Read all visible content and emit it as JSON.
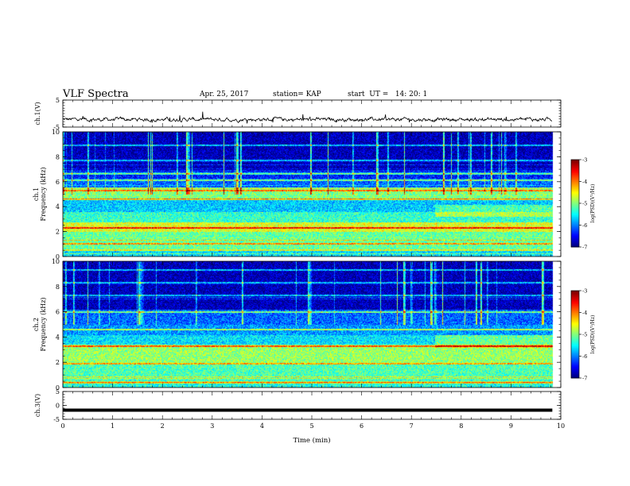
{
  "header": {
    "title": "VLF Spectra",
    "date": "Apr. 25, 2017",
    "station": "station= KAP",
    "start": "start  UT =   14: 20: 1"
  },
  "chart_data": [
    {
      "type": "line",
      "panel": "ch1-waveform",
      "ylabel": "ch.1(V)",
      "yticks": [
        "5",
        "-5"
      ],
      "ylim": [
        -5,
        5
      ],
      "xlim": [
        0,
        10
      ],
      "x_end": 9.83,
      "description_values": {
        "baseline_v": -2.2,
        "variability_v": 1.3
      },
      "color": "#000000"
    },
    {
      "type": "heatmap",
      "panel": "ch1-spectrogram",
      "ylabel_line1": "ch.1",
      "ylabel_line2": "Frequency (kHz)",
      "yticks": [
        "0",
        "2",
        "4",
        "6",
        "8",
        "10"
      ],
      "ylim": [
        0,
        10
      ],
      "xlim": [
        0,
        10
      ],
      "x_end": 9.83,
      "colorbar": {
        "label": "log(PSD)(V²/Hz)",
        "ticks": [
          "-3",
          "-4",
          "-5",
          "-6",
          "-7"
        ],
        "range": [
          -7,
          -3
        ]
      },
      "bands": [
        {
          "f0": 0.0,
          "f1": 0.6,
          "level": -5.6
        },
        {
          "f0": 0.6,
          "f1": 2.0,
          "level": -5.1
        },
        {
          "f0": 2.0,
          "f1": 2.8,
          "level": -4.6
        },
        {
          "f0": 2.8,
          "f1": 3.6,
          "level": -5.3
        },
        {
          "f0": 3.6,
          "f1": 4.6,
          "level": -5.7
        },
        {
          "f0": 4.6,
          "f1": 5.6,
          "level": -5.0
        },
        {
          "f0": 5.6,
          "f1": 6.3,
          "level": -6.1
        },
        {
          "f0": 6.3,
          "f1": 7.0,
          "level": -6.4
        },
        {
          "f0": 7.0,
          "f1": 10.0,
          "level": -6.8
        }
      ],
      "lines_khz": [
        0.5,
        1.0,
        2.3,
        4.6,
        5.3,
        6.1,
        6.6,
        7.7,
        8.9
      ],
      "spike_density": 0.55
    },
    {
      "type": "heatmap",
      "panel": "ch2-spectrogram",
      "ylabel_line1": "ch.2",
      "ylabel_line2": "Frequency (kHz)",
      "yticks": [
        "0",
        "2",
        "4",
        "6",
        "8",
        "10"
      ],
      "ylim": [
        0,
        10
      ],
      "xlim": [
        0,
        10
      ],
      "x_end": 9.83,
      "colorbar": {
        "label": "log(PSD)(V²/Hz)",
        "ticks": [
          "-3",
          "-4",
          "-5",
          "-6",
          "-7"
        ],
        "range": [
          -7,
          -3
        ]
      },
      "bands": [
        {
          "f0": 0.0,
          "f1": 0.6,
          "level": -5.4
        },
        {
          "f0": 0.6,
          "f1": 2.0,
          "level": -5.2
        },
        {
          "f0": 2.0,
          "f1": 3.4,
          "level": -4.9
        },
        {
          "f0": 3.4,
          "f1": 4.2,
          "level": -5.6
        },
        {
          "f0": 4.2,
          "f1": 5.0,
          "level": -5.9
        },
        {
          "f0": 5.0,
          "f1": 6.2,
          "level": -6.1
        },
        {
          "f0": 6.2,
          "f1": 10.0,
          "level": -6.8
        }
      ],
      "lines_khz": [
        0.4,
        1.9,
        3.3,
        4.6,
        6.0,
        7.3,
        8.3,
        9.3
      ],
      "spike_density": 0.35
    },
    {
      "type": "line",
      "panel": "ch3-waveform",
      "ylabel": "ch.3(V)",
      "yticks": [
        "5",
        "0",
        "-5"
      ],
      "ylim": [
        -5,
        5
      ],
      "xlim": [
        0,
        10
      ],
      "x_end": 9.83,
      "constant_v": -1.7,
      "color": "#000000"
    }
  ],
  "xaxis": {
    "label": "Time  (min)",
    "ticks": [
      "0",
      "1",
      "2",
      "3",
      "4",
      "5",
      "6",
      "7",
      "8",
      "9",
      "10"
    ],
    "range": [
      0,
      10
    ]
  }
}
